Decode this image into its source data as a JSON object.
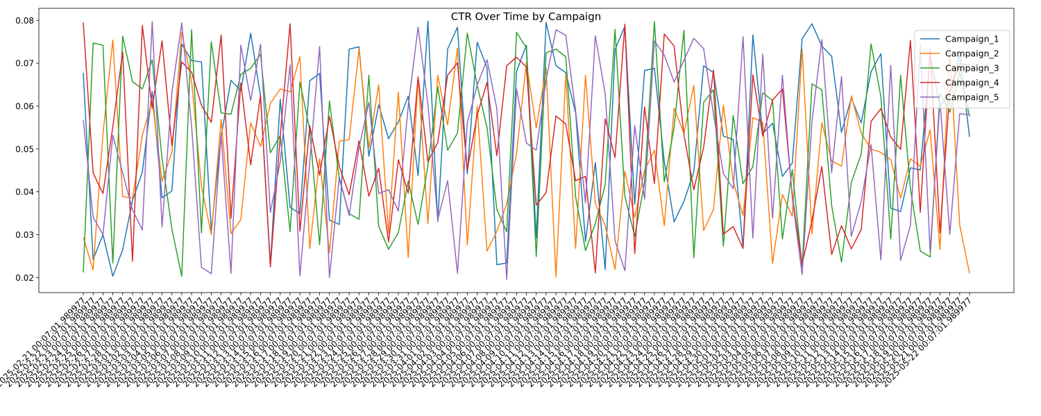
{
  "chart_data": {
    "type": "line",
    "title": "CTR Over Time by Campaign",
    "xlabel": "",
    "ylabel": "",
    "ylim": [
      0.0165,
      0.0828
    ],
    "yticks": [
      0.02,
      0.03,
      0.04,
      0.05,
      0.06,
      0.07,
      0.08
    ],
    "ytick_labels": [
      "0.02",
      "0.03",
      "0.04",
      "0.05",
      "0.06",
      "0.07",
      "0.08"
    ],
    "grid": false,
    "legend_position": "top-right",
    "x": [
      "2025-02-21 00:07:01.989977",
      "2025-02-22 00:07:01.989977",
      "2025-02-23 00:07:01.989977",
      "2025-02-24 00:07:01.989977",
      "2025-02-25 00:07:01.989977",
      "2025-02-26 00:07:01.989977",
      "2025-02-27 00:07:01.989977",
      "2025-02-28 00:07:01.989977",
      "2025-03-01 00:07:01.989977",
      "2025-03-02 00:07:01.989977",
      "2025-03-03 00:07:01.989977",
      "2025-03-04 00:07:01.989977",
      "2025-03-05 00:07:01.989977",
      "2025-03-06 00:07:01.989977",
      "2025-03-07 00:07:01.989977",
      "2025-03-08 00:07:01.989977",
      "2025-03-09 00:07:01.989977",
      "2025-03-10 00:07:01.989977",
      "2025-03-11 00:07:01.989977",
      "2025-03-12 00:07:01.989977",
      "2025-03-13 00:07:01.989977",
      "2025-03-14 00:07:01.989977",
      "2025-03-15 00:07:01.989977",
      "2025-03-16 00:07:01.989977",
      "2025-03-17 00:07:01.989977",
      "2025-03-18 00:07:01.989977",
      "2025-03-19 00:07:01.989977",
      "2025-03-20 00:07:01.989977",
      "2025-03-21 00:07:01.989977",
      "2025-03-22 00:07:01.989977",
      "2025-03-23 00:07:01.989977",
      "2025-03-24 00:07:01.989977",
      "2025-03-25 00:07:01.989977",
      "2025-03-26 00:07:01.989977",
      "2025-03-27 00:07:01.989977",
      "2025-03-28 00:07:01.989977",
      "2025-03-29 00:07:01.989977",
      "2025-03-30 00:07:01.989977",
      "2025-03-31 00:07:01.989977",
      "2025-04-01 00:07:01.989977",
      "2025-04-02 00:07:01.989977",
      "2025-04-03 00:07:01.989977",
      "2025-04-04 00:07:01.989977",
      "2025-04-05 00:07:01.989977",
      "2025-04-06 00:07:01.989977",
      "2025-04-07 00:07:01.989977",
      "2025-04-08 00:07:01.989977",
      "2025-04-09 00:07:01.989977",
      "2025-04-10 00:07:01.989977",
      "2025-04-11 00:07:01.989977",
      "2025-04-12 00:07:01.989977",
      "2025-04-13 00:07:01.989977",
      "2025-04-14 00:07:01.989977",
      "2025-04-15 00:07:01.989977",
      "2025-04-16 00:07:01.989977",
      "2025-04-17 00:07:01.989977",
      "2025-04-18 00:07:01.989977",
      "2025-04-19 00:07:01.989977",
      "2025-04-20 00:07:01.989977",
      "2025-04-21 00:07:01.989977",
      "2025-04-22 00:07:01.989977",
      "2025-04-23 00:07:01.989977",
      "2025-04-24 00:07:01.989977",
      "2025-04-25 00:07:01.989977",
      "2025-04-26 00:07:01.989977",
      "2025-04-27 00:07:01.989977",
      "2025-04-28 00:07:01.989977",
      "2025-04-29 00:07:01.989977",
      "2025-04-30 00:07:01.989977",
      "2025-05-01 00:07:01.989977",
      "2025-05-02 00:07:01.989977",
      "2025-05-03 00:07:01.989977",
      "2025-05-04 00:07:01.989977",
      "2025-05-05 00:07:01.989977",
      "2025-05-06 00:07:01.989977",
      "2025-05-07 00:07:01.989977",
      "2025-05-08 00:07:01.989977",
      "2025-05-09 00:07:01.989977",
      "2025-05-10 00:07:01.989977",
      "2025-05-11 00:07:01.989977",
      "2025-05-12 00:07:01.989977",
      "2025-05-13 00:07:01.989977",
      "2025-05-14 00:07:01.989977",
      "2025-05-15 00:07:01.989977",
      "2025-05-16 00:07:01.989977",
      "2025-05-17 00:07:01.989977",
      "2025-05-18 00:07:01.989977",
      "2025-05-19 00:07:01.989977",
      "2025-05-20 00:07:01.989977",
      "2025-05-21 00:07:01.989977",
      "2025-05-22 00:07:01.989977"
    ],
    "series": [
      {
        "name": "Campaign_1",
        "color": "#1f77b4",
        "values": [
          0.0678,
          0.0242,
          0.03,
          0.0203,
          0.0265,
          0.038,
          0.0446,
          0.0634,
          0.0386,
          0.0402,
          0.0745,
          0.0706,
          0.0703,
          0.0309,
          0.053,
          0.066,
          0.0636,
          0.077,
          0.0623,
          0.0229,
          0.0616,
          0.0364,
          0.0349,
          0.0659,
          0.0676,
          0.0334,
          0.0324,
          0.0733,
          0.0738,
          0.0483,
          0.0603,
          0.0524,
          0.0563,
          0.0623,
          0.0438,
          0.0798,
          0.0331,
          0.0733,
          0.0784,
          0.0442,
          0.0749,
          0.069,
          0.023,
          0.0234,
          0.0681,
          0.0742,
          0.0292,
          0.0795,
          0.0694,
          0.0678,
          0.0584,
          0.0284,
          0.0468,
          0.0219,
          0.0732,
          0.0786,
          0.0371,
          0.0683,
          0.0688,
          0.0471,
          0.033,
          0.0378,
          0.0446,
          0.0694,
          0.0678,
          0.053,
          0.0522,
          0.0269,
          0.0766,
          0.0536,
          0.056,
          0.0436,
          0.0467,
          0.0757,
          0.0792,
          0.074,
          0.0716,
          0.0539,
          0.0619,
          0.0561,
          0.068,
          0.0722,
          0.0362,
          0.0354,
          0.0456,
          0.0451,
          0.0718,
          0.0599,
          0.0632,
          0.0721,
          0.0528
        ]
      },
      {
        "name": "Campaign_2",
        "color": "#ff7f0e",
        "values": [
          0.0294,
          0.0218,
          0.0535,
          0.0754,
          0.0389,
          0.0385,
          0.0532,
          0.0613,
          0.0425,
          0.0492,
          0.0772,
          0.0658,
          0.0413,
          0.03,
          0.0569,
          0.0303,
          0.0335,
          0.0561,
          0.0506,
          0.0606,
          0.064,
          0.0633,
          0.0715,
          0.0268,
          0.0477,
          0.0258,
          0.0518,
          0.0522,
          0.0733,
          0.0503,
          0.065,
          0.0304,
          0.0633,
          0.0247,
          0.0668,
          0.0326,
          0.0672,
          0.0556,
          0.0735,
          0.0276,
          0.06,
          0.0262,
          0.0308,
          0.0372,
          0.049,
          0.0702,
          0.0549,
          0.0689,
          0.0201,
          0.0674,
          0.0268,
          0.0672,
          0.0372,
          0.0322,
          0.0219,
          0.0448,
          0.034,
          0.045,
          0.0497,
          0.0321,
          0.0595,
          0.0537,
          0.0648,
          0.031,
          0.0359,
          0.0602,
          0.0424,
          0.0345,
          0.0573,
          0.0562,
          0.0233,
          0.0394,
          0.0343,
          0.0733,
          0.0302,
          0.0561,
          0.0472,
          0.046,
          0.0624,
          0.0537,
          0.05,
          0.0492,
          0.0475,
          0.0385,
          0.0477,
          0.046,
          0.0545,
          0.0265,
          0.0736,
          0.0323,
          0.021
        ]
      },
      {
        "name": "Campaign_3",
        "color": "#2ca02c",
        "values": [
          0.0212,
          0.0747,
          0.0742,
          0.0234,
          0.0763,
          0.0657,
          0.064,
          0.0708,
          0.0478,
          0.0313,
          0.0203,
          0.0778,
          0.0304,
          0.075,
          0.0584,
          0.0581,
          0.0674,
          0.0688,
          0.0721,
          0.0491,
          0.0531,
          0.0307,
          0.0656,
          0.0545,
          0.0277,
          0.0612,
          0.043,
          0.0349,
          0.0336,
          0.0672,
          0.032,
          0.0266,
          0.0305,
          0.0425,
          0.0324,
          0.0461,
          0.0645,
          0.0497,
          0.0537,
          0.077,
          0.0649,
          0.055,
          0.0359,
          0.0307,
          0.0772,
          0.0736,
          0.0249,
          0.0724,
          0.0733,
          0.0715,
          0.0388,
          0.0263,
          0.0326,
          0.0417,
          0.0779,
          0.039,
          0.0296,
          0.0423,
          0.0797,
          0.0423,
          0.055,
          0.0777,
          0.0246,
          0.0609,
          0.0638,
          0.0273,
          0.0578,
          0.0419,
          0.0459,
          0.0631,
          0.0613,
          0.029,
          0.0452,
          0.0225,
          0.0652,
          0.0638,
          0.0368,
          0.0236,
          0.0422,
          0.0488,
          0.0745,
          0.0622,
          0.029,
          0.0672,
          0.0407,
          0.0262,
          0.0248,
          0.0629,
          0.0586,
          0.0679,
          0.0576
        ]
      },
      {
        "name": "Campaign_4",
        "color": "#d62728",
        "values": [
          0.0795,
          0.0444,
          0.0396,
          0.0552,
          0.0726,
          0.0238,
          0.0788,
          0.0595,
          0.0752,
          0.0508,
          0.0703,
          0.0679,
          0.0602,
          0.0562,
          0.0766,
          0.0338,
          0.0654,
          0.0463,
          0.0625,
          0.0225,
          0.0531,
          0.0792,
          0.0308,
          0.0554,
          0.0439,
          0.0576,
          0.0459,
          0.0393,
          0.0519,
          0.039,
          0.0455,
          0.0283,
          0.0475,
          0.0397,
          0.0668,
          0.047,
          0.0515,
          0.0672,
          0.0701,
          0.0451,
          0.0579,
          0.0655,
          0.0484,
          0.0694,
          0.0714,
          0.0691,
          0.0369,
          0.0398,
          0.0577,
          0.0558,
          0.0426,
          0.0436,
          0.0211,
          0.057,
          0.048,
          0.0791,
          0.0256,
          0.0598,
          0.0419,
          0.0768,
          0.074,
          0.0533,
          0.0405,
          0.0504,
          0.0684,
          0.0301,
          0.0319,
          0.0268,
          0.0673,
          0.053,
          0.0614,
          0.064,
          0.0392,
          0.0231,
          0.0333,
          0.0459,
          0.0254,
          0.0321,
          0.0267,
          0.0312,
          0.0564,
          0.0594,
          0.0528,
          0.0499,
          0.0753,
          0.0352,
          0.0734,
          0.0304,
          0.0634,
          0.0699,
          0.0696
        ]
      },
      {
        "name": "Campaign_5",
        "color": "#9467bd",
        "values": [
          0.0567,
          0.0341,
          0.03,
          0.0532,
          0.0444,
          0.0358,
          0.0311,
          0.0797,
          0.0318,
          0.0631,
          0.0794,
          0.0553,
          0.0224,
          0.0209,
          0.0534,
          0.021,
          0.0742,
          0.0613,
          0.0744,
          0.0352,
          0.047,
          0.0696,
          0.0204,
          0.0469,
          0.0739,
          0.02,
          0.0434,
          0.0345,
          0.0502,
          0.0609,
          0.0396,
          0.0405,
          0.0355,
          0.06,
          0.0784,
          0.0605,
          0.0335,
          0.0426,
          0.021,
          0.0561,
          0.0649,
          0.0708,
          0.0594,
          0.0196,
          0.064,
          0.0514,
          0.0497,
          0.0661,
          0.0778,
          0.0765,
          0.0589,
          0.0374,
          0.0764,
          0.0629,
          0.0286,
          0.0216,
          0.0555,
          0.0383,
          0.0752,
          0.0719,
          0.0656,
          0.0707,
          0.0758,
          0.0734,
          0.0581,
          0.0443,
          0.0407,
          0.0762,
          0.0292,
          0.0721,
          0.0339,
          0.0672,
          0.0386,
          0.0207,
          0.0564,
          0.0755,
          0.0445,
          0.0669,
          0.0296,
          0.0378,
          0.051,
          0.0241,
          0.0695,
          0.024,
          0.0322,
          0.0742,
          0.0261,
          0.0612,
          0.0301,
          0.0582,
          0.058
        ]
      }
    ]
  }
}
